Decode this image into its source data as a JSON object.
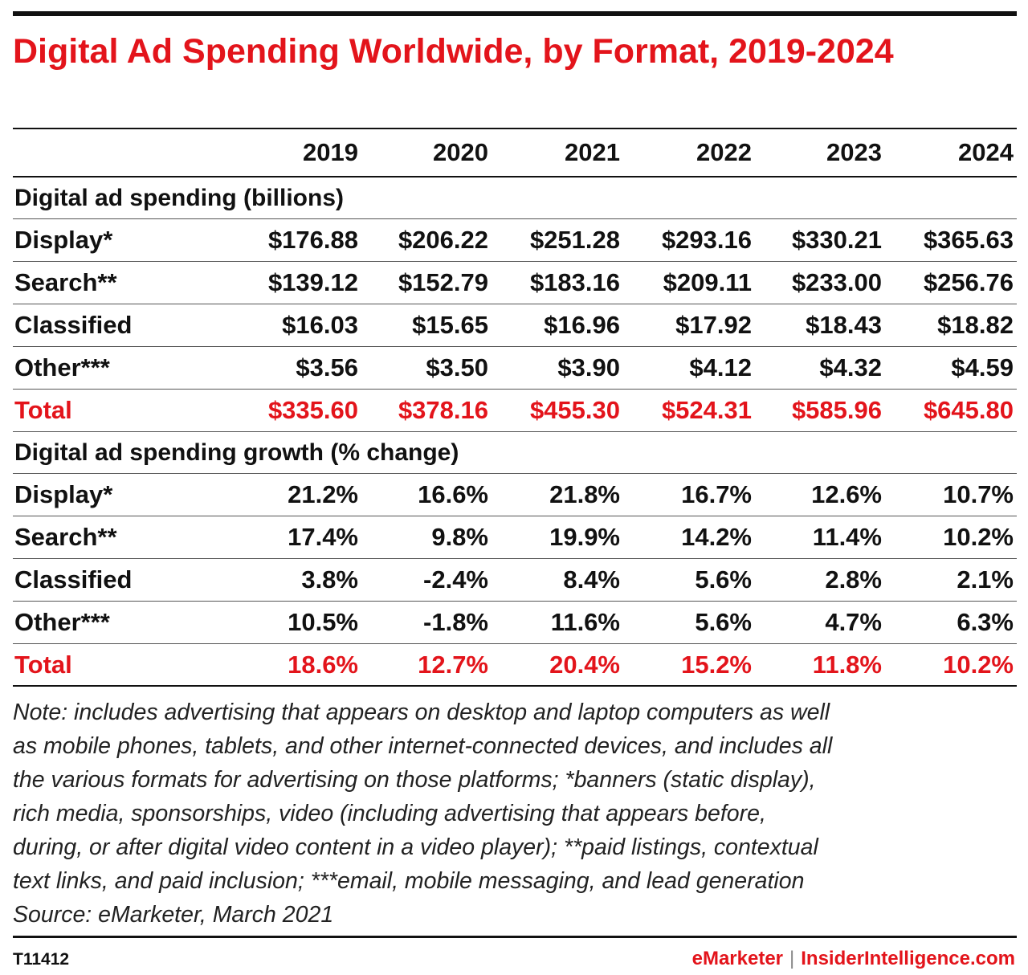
{
  "title": "Digital Ad Spending Worldwide, by Format, 2019-2024",
  "chart_data": {
    "type": "table",
    "title": "Digital Ad Spending Worldwide, by Format, 2019-2024",
    "columns": [
      "2019",
      "2020",
      "2021",
      "2022",
      "2023",
      "2024"
    ],
    "sections": [
      {
        "heading": "Digital ad spending (billions)",
        "rows": [
          {
            "label": "Display*",
            "values": [
              "$176.88",
              "$206.22",
              "$251.28",
              "$293.16",
              "$330.21",
              "$365.63"
            ]
          },
          {
            "label": "Search**",
            "values": [
              "$139.12",
              "$152.79",
              "$183.16",
              "$209.11",
              "$233.00",
              "$256.76"
            ]
          },
          {
            "label": "Classified",
            "values": [
              "$16.03",
              "$15.65",
              "$16.96",
              "$17.92",
              "$18.43",
              "$18.82"
            ]
          },
          {
            "label": "Other***",
            "values": [
              "$3.56",
              "$3.50",
              "$3.90",
              "$4.12",
              "$4.32",
              "$4.59"
            ]
          },
          {
            "label": "Total",
            "values": [
              "$335.60",
              "$378.16",
              "$455.30",
              "$524.31",
              "$585.96",
              "$645.80"
            ],
            "highlight": true
          }
        ]
      },
      {
        "heading": "Digital ad spending growth (% change)",
        "rows": [
          {
            "label": "Display*",
            "values": [
              "21.2%",
              "16.6%",
              "21.8%",
              "16.7%",
              "12.6%",
              "10.7%"
            ]
          },
          {
            "label": "Search**",
            "values": [
              "17.4%",
              "9.8%",
              "19.9%",
              "14.2%",
              "11.4%",
              "10.2%"
            ]
          },
          {
            "label": "Classified",
            "values": [
              "3.8%",
              "-2.4%",
              "8.4%",
              "5.6%",
              "2.8%",
              "2.1%"
            ]
          },
          {
            "label": "Other***",
            "values": [
              "10.5%",
              "-1.8%",
              "11.6%",
              "5.6%",
              "4.7%",
              "6.3%"
            ]
          },
          {
            "label": "Total",
            "values": [
              "18.6%",
              "12.7%",
              "20.4%",
              "15.2%",
              "11.8%",
              "10.2%"
            ],
            "highlight": true
          }
        ]
      }
    ]
  },
  "note_lines": [
    "Note: includes advertising that appears on desktop and laptop computers as well",
    "as mobile phones, tablets, and other internet-connected devices, and includes all",
    "the various formats for advertising on those platforms; *banners (static display),",
    "rich media, sponsorships, video (including advertising that appears before,",
    "during, or after digital video content in a video player); **paid listings, contextual",
    "text links, and paid inclusion; ***email, mobile messaging, and lead generation",
    "Source: eMarketer, March 2021"
  ],
  "footer": {
    "chart_id": "T11412",
    "brand_emarketer": "eMarketer",
    "separator": "|",
    "brand_insider": "InsiderIntelligence.com"
  },
  "colors": {
    "accent": "#e3141b",
    "text": "#111111"
  }
}
